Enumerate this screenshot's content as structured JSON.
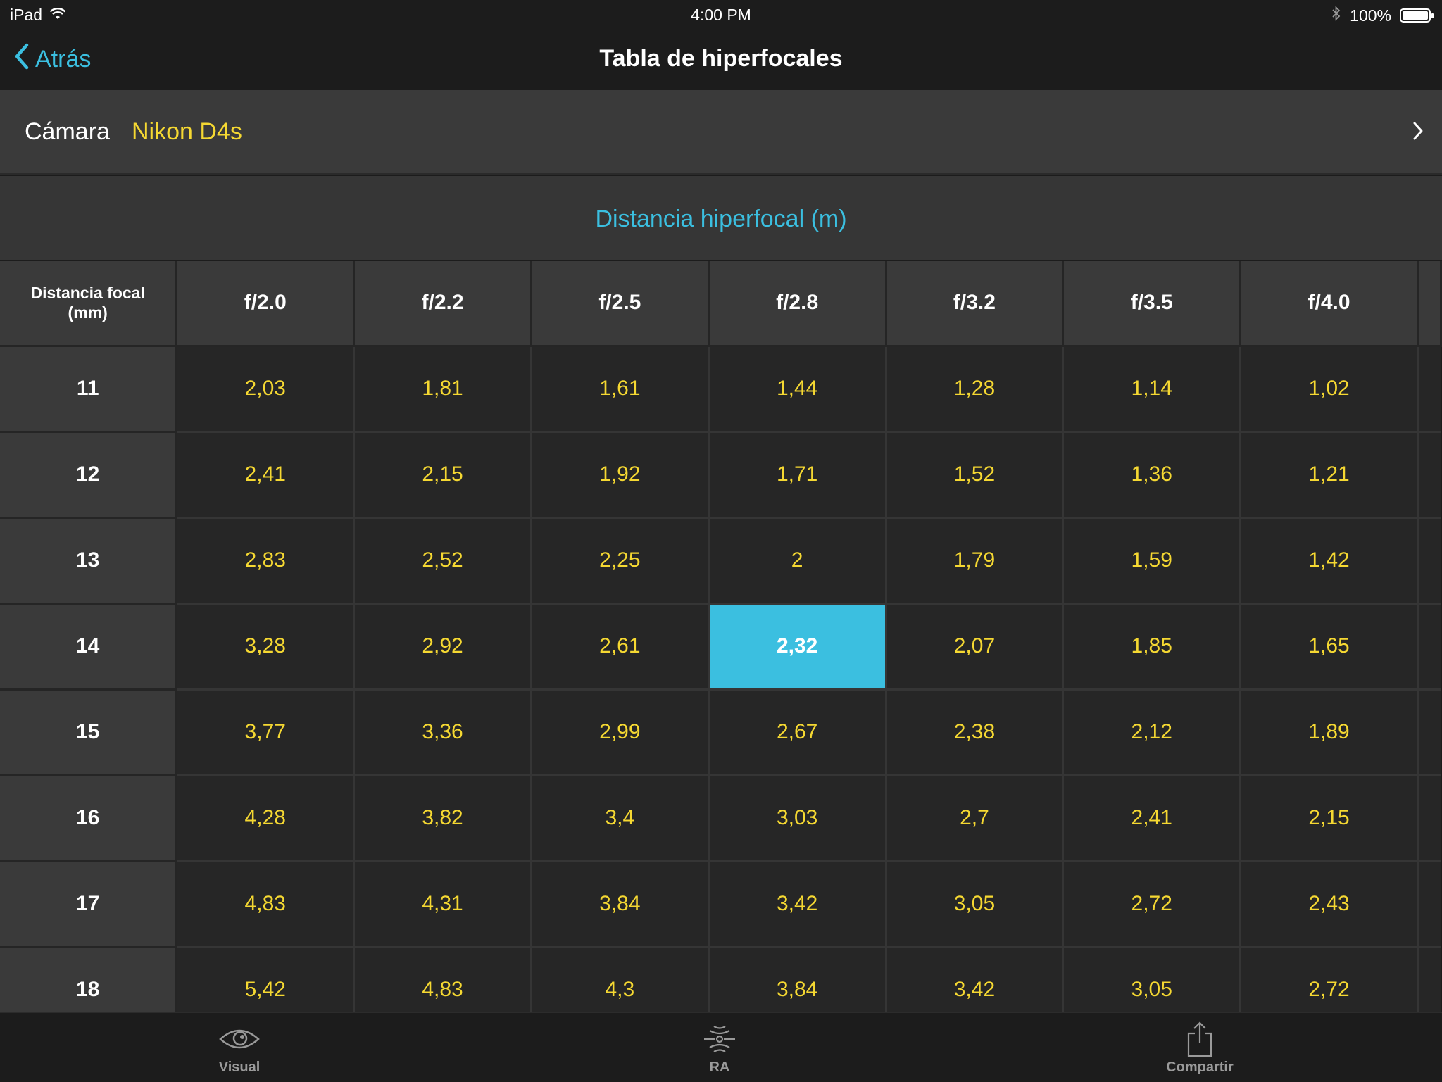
{
  "status_bar": {
    "device": "iPad",
    "time": "4:00 PM",
    "battery": "100%"
  },
  "nav": {
    "back_label": "Atrás",
    "title": "Tabla de hiperfocales"
  },
  "camera": {
    "label": "Cámara",
    "value": "Nikon D4s"
  },
  "section_title": "Distancia hiperfocal (m)",
  "table": {
    "corner_line1": "Distancia focal",
    "corner_line2": "(mm)",
    "apertures": [
      "f/2.0",
      "f/2.2",
      "f/2.5",
      "f/2.8",
      "f/3.2",
      "f/3.5",
      "f/4.0"
    ],
    "selected": {
      "row": 3,
      "col": 3
    },
    "rows": [
      {
        "focal": "11",
        "values": [
          "2,03",
          "1,81",
          "1,61",
          "1,44",
          "1,28",
          "1,14",
          "1,02"
        ]
      },
      {
        "focal": "12",
        "values": [
          "2,41",
          "2,15",
          "1,92",
          "1,71",
          "1,52",
          "1,36",
          "1,21"
        ]
      },
      {
        "focal": "13",
        "values": [
          "2,83",
          "2,52",
          "2,25",
          "2",
          "1,79",
          "1,59",
          "1,42"
        ]
      },
      {
        "focal": "14",
        "values": [
          "3,28",
          "2,92",
          "2,61",
          "2,32",
          "2,07",
          "1,85",
          "1,65"
        ]
      },
      {
        "focal": "15",
        "values": [
          "3,77",
          "3,36",
          "2,99",
          "2,67",
          "2,38",
          "2,12",
          "1,89"
        ]
      },
      {
        "focal": "16",
        "values": [
          "4,28",
          "3,82",
          "3,4",
          "3,03",
          "2,7",
          "2,41",
          "2,15"
        ]
      },
      {
        "focal": "17",
        "values": [
          "4,83",
          "4,31",
          "3,84",
          "3,42",
          "3,05",
          "2,72",
          "2,43"
        ]
      },
      {
        "focal": "18",
        "values": [
          "5,42",
          "4,83",
          "4,3",
          "3,84",
          "3,42",
          "3,05",
          "2,72"
        ]
      }
    ]
  },
  "tab_bar": {
    "items": [
      {
        "label": "Visual",
        "icon": "eye-icon"
      },
      {
        "label": "RA",
        "icon": "ar-icon"
      },
      {
        "label": "Compartir",
        "icon": "share-icon"
      }
    ]
  },
  "colors": {
    "accent": "#3bbfe0",
    "value_text": "#f5d832",
    "header_bg": "#3a3a3a",
    "cell_bg": "#262626"
  }
}
